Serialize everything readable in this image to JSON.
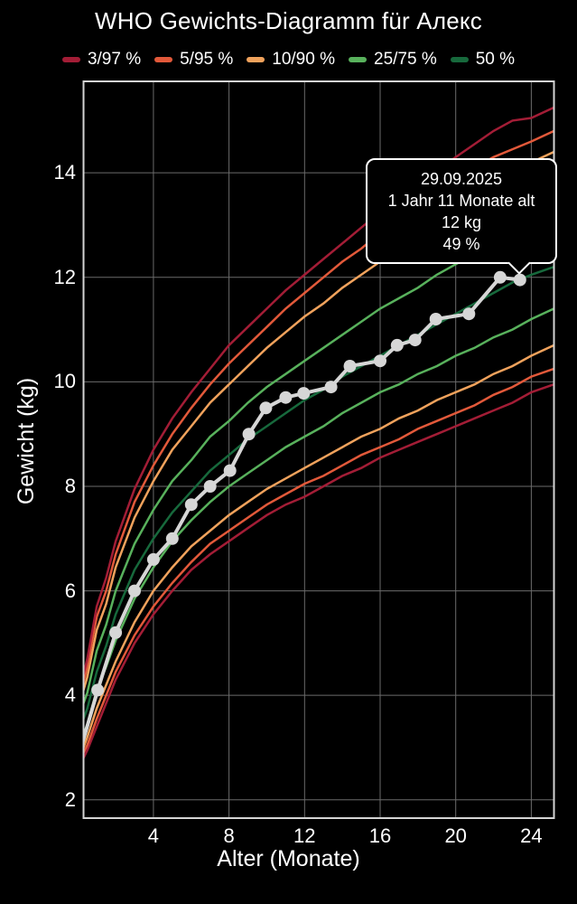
{
  "title": "WHO Gewichts-Diagramm für Алекс",
  "legend": {
    "items": [
      {
        "label": "3/97 %",
        "color": "#a31d36"
      },
      {
        "label": "5/95 %",
        "color": "#e2593a"
      },
      {
        "label": "10/90 %",
        "color": "#f0a25c"
      },
      {
        "label": "25/75 %",
        "color": "#58b15c"
      },
      {
        "label": "50 %",
        "color": "#17693c"
      }
    ]
  },
  "axes": {
    "x_title": "Alter (Monate)",
    "y_title": "Gewicht (kg)",
    "x_ticks": [
      4,
      8,
      12,
      16,
      20,
      24
    ],
    "y_ticks": [
      2,
      4,
      6,
      8,
      10,
      12,
      14
    ]
  },
  "tooltip": {
    "lines": [
      "29.09.2025",
      "1 Jahr 11 Monate alt",
      "12 kg",
      "49 %"
    ]
  },
  "colors": {
    "background": "#000000",
    "text": "#ffffff",
    "grid": "#6b6b6b",
    "frame": "#d4d4d4",
    "measurement_line": "#d6d6d6"
  },
  "chart_data": {
    "type": "line",
    "title": "WHO Gewichts-Diagramm für Алекс",
    "xlabel": "Alter (Monate)",
    "ylabel": "Gewicht (kg)",
    "xlim": [
      0.3,
      25.2
    ],
    "ylim": [
      1.65,
      15.75
    ],
    "grid": true,
    "legend_position": "top",
    "percentile_curves": {
      "months": [
        0.3,
        0.5,
        1,
        1.5,
        2,
        3,
        4,
        5,
        6,
        7,
        8,
        9,
        10,
        11,
        12,
        13,
        14,
        15,
        16,
        17,
        18,
        19,
        20,
        21,
        22,
        23,
        24,
        25.2
      ],
      "series": [
        {
          "name": "P3",
          "label": "3/97 %",
          "color": "#a31d36",
          "values": [
            2.8,
            2.95,
            3.4,
            3.85,
            4.3,
            5.0,
            5.55,
            6.0,
            6.4,
            6.7,
            6.95,
            7.2,
            7.45,
            7.65,
            7.8,
            8.0,
            8.2,
            8.35,
            8.55,
            8.7,
            8.85,
            9.0,
            9.15,
            9.3,
            9.45,
            9.6,
            9.8,
            9.95
          ]
        },
        {
          "name": "P5",
          "label": "5/95 %",
          "color": "#e2593a",
          "values": [
            2.9,
            3.05,
            3.55,
            4.0,
            4.45,
            5.15,
            5.7,
            6.15,
            6.55,
            6.9,
            7.15,
            7.4,
            7.65,
            7.85,
            8.05,
            8.2,
            8.4,
            8.6,
            8.75,
            8.9,
            9.1,
            9.25,
            9.4,
            9.55,
            9.75,
            9.9,
            10.1,
            10.25
          ]
        },
        {
          "name": "P10",
          "label": "10/90 %",
          "color": "#f0a25c",
          "values": [
            3.0,
            3.2,
            3.75,
            4.2,
            4.65,
            5.4,
            6.0,
            6.45,
            6.85,
            7.15,
            7.45,
            7.7,
            7.95,
            8.15,
            8.35,
            8.55,
            8.75,
            8.95,
            9.1,
            9.3,
            9.45,
            9.65,
            9.8,
            9.95,
            10.15,
            10.3,
            10.5,
            10.7
          ]
        },
        {
          "name": "P25",
          "label": "25/75 %",
          "color": "#58b15c",
          "values": [
            3.25,
            3.45,
            4.1,
            4.55,
            5.05,
            5.85,
            6.45,
            6.95,
            7.35,
            7.7,
            8.0,
            8.25,
            8.5,
            8.75,
            8.95,
            9.15,
            9.4,
            9.6,
            9.8,
            9.95,
            10.15,
            10.3,
            10.5,
            10.65,
            10.85,
            11.0,
            11.2,
            11.4
          ]
        },
        {
          "name": "P50",
          "label": "50 %",
          "color": "#17693c",
          "values": [
            3.55,
            3.75,
            4.45,
            4.95,
            5.55,
            6.4,
            7.0,
            7.5,
            7.9,
            8.3,
            8.6,
            8.9,
            9.15,
            9.4,
            9.65,
            9.85,
            10.1,
            10.3,
            10.5,
            10.7,
            10.9,
            11.1,
            11.3,
            11.5,
            11.7,
            11.9,
            12.05,
            12.2
          ]
        },
        {
          "name": "P75",
          "label": "25/75 %",
          "color": "#58b15c",
          "values": [
            3.85,
            4.05,
            4.85,
            5.35,
            6.0,
            6.9,
            7.55,
            8.1,
            8.5,
            8.95,
            9.25,
            9.6,
            9.9,
            10.15,
            10.4,
            10.65,
            10.9,
            11.15,
            11.4,
            11.6,
            11.8,
            12.05,
            12.25,
            12.45,
            12.7,
            12.9,
            13.1,
            13.3
          ]
        },
        {
          "name": "P90",
          "label": "10/90 %",
          "color": "#f0a25c",
          "values": [
            4.1,
            4.35,
            5.25,
            5.75,
            6.45,
            7.4,
            8.1,
            8.7,
            9.15,
            9.6,
            9.95,
            10.3,
            10.65,
            10.95,
            11.25,
            11.5,
            11.8,
            12.05,
            12.3,
            12.55,
            12.8,
            13.05,
            13.25,
            13.5,
            13.75,
            13.95,
            14.2,
            14.4
          ]
        },
        {
          "name": "P95",
          "label": "5/95 %",
          "color": "#e2593a",
          "values": [
            4.25,
            4.55,
            5.5,
            6.0,
            6.7,
            7.7,
            8.4,
            9.0,
            9.5,
            9.95,
            10.35,
            10.7,
            11.05,
            11.4,
            11.7,
            12.0,
            12.3,
            12.55,
            12.85,
            13.1,
            13.35,
            13.6,
            13.85,
            14.1,
            14.3,
            14.45,
            14.6,
            14.8
          ]
        },
        {
          "name": "P97",
          "label": "3/97 %",
          "color": "#a31d36",
          "values": [
            4.4,
            4.7,
            5.7,
            6.25,
            6.95,
            7.95,
            8.7,
            9.3,
            9.8,
            10.25,
            10.7,
            11.05,
            11.4,
            11.75,
            12.05,
            12.35,
            12.65,
            12.95,
            13.25,
            13.5,
            13.75,
            14.05,
            14.3,
            14.55,
            14.8,
            15.0,
            15.05,
            15.25
          ]
        }
      ]
    },
    "measurements": {
      "name": "Алекс",
      "color": "#d6d6d6",
      "points": [
        [
          0.05,
          2.85
        ],
        [
          1.05,
          4.1
        ],
        [
          2.0,
          5.2
        ],
        [
          3.0,
          6.0
        ],
        [
          4.0,
          6.6
        ],
        [
          5.0,
          7.0
        ],
        [
          6.0,
          7.65
        ],
        [
          7.0,
          8.0
        ],
        [
          8.05,
          8.3
        ],
        [
          9.05,
          9.0
        ],
        [
          9.95,
          9.5
        ],
        [
          11.0,
          9.7
        ],
        [
          11.95,
          9.78
        ],
        [
          13.4,
          9.9
        ],
        [
          14.4,
          10.3
        ],
        [
          16.0,
          10.4
        ],
        [
          16.9,
          10.7
        ],
        [
          17.85,
          10.8
        ],
        [
          18.95,
          11.2
        ],
        [
          20.7,
          11.3
        ],
        [
          22.35,
          12.0
        ],
        [
          23.4,
          11.95
        ]
      ]
    },
    "selected_point": {
      "date": "29.09.2025",
      "age_text": "1 Jahr 11 Monate alt",
      "weight_kg": 12,
      "percentile": 49,
      "month": 23.4
    }
  }
}
